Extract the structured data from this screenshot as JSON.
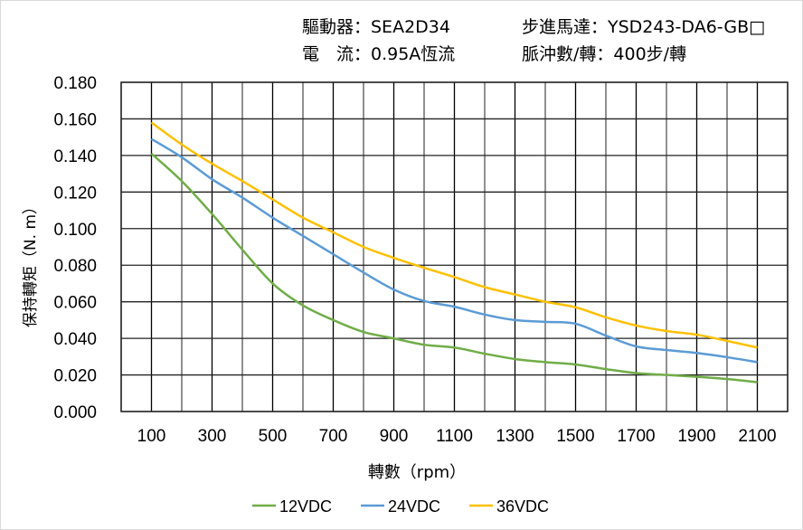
{
  "header": {
    "driver": "驅動器：SEA2D34",
    "current": "電　流：0.95A恆流",
    "motor": "步進馬達：YSD243-DA6-GB□",
    "pulses": "脈沖數/轉：400步/轉"
  },
  "chart_data": {
    "type": "line",
    "title": "",
    "xlabel": "轉數（rpm）",
    "ylabel": "保持轉矩（N. m）",
    "xlim": [
      0,
      2200
    ],
    "ylim": [
      0,
      0.18
    ],
    "grid": true,
    "legend_position": "bottom",
    "x_ticks": [
      "100",
      "300",
      "500",
      "700",
      "900",
      "1100",
      "1300",
      "1500",
      "1700",
      "1900",
      "2100"
    ],
    "y_ticks": [
      "0.000",
      "0.020",
      "0.040",
      "0.060",
      "0.080",
      "0.100",
      "0.120",
      "0.140",
      "0.160",
      "0.180"
    ],
    "x": [
      100,
      200,
      300,
      400,
      500,
      600,
      700,
      800,
      900,
      1000,
      1100,
      1200,
      1300,
      1400,
      1500,
      1600,
      1700,
      1800,
      1900,
      2000,
      2100
    ],
    "series": [
      {
        "name": "12VDC",
        "color": "#70ad47",
        "values": [
          0.141,
          0.126,
          0.108,
          0.0885,
          0.07,
          0.058,
          0.05,
          0.0435,
          0.04,
          0.0365,
          0.035,
          0.0316,
          0.0287,
          0.027,
          0.0257,
          0.0232,
          0.021,
          0.02,
          0.019,
          0.0178,
          0.016
        ]
      },
      {
        "name": "24VDC",
        "color": "#5b9bd5",
        "values": [
          0.149,
          0.139,
          0.127,
          0.117,
          0.106,
          0.096,
          0.086,
          0.076,
          0.0667,
          0.0604,
          0.0573,
          0.053,
          0.05,
          0.049,
          0.048,
          0.0415,
          0.0356,
          0.0336,
          0.032,
          0.0297,
          0.027
        ]
      },
      {
        "name": "36VDC",
        "color": "#ffc000",
        "values": [
          0.158,
          0.146,
          0.1355,
          0.126,
          0.116,
          0.106,
          0.098,
          0.09,
          0.084,
          0.0786,
          0.0735,
          0.068,
          0.064,
          0.06,
          0.057,
          0.0515,
          0.047,
          0.044,
          0.042,
          0.0386,
          0.035
        ]
      }
    ]
  }
}
